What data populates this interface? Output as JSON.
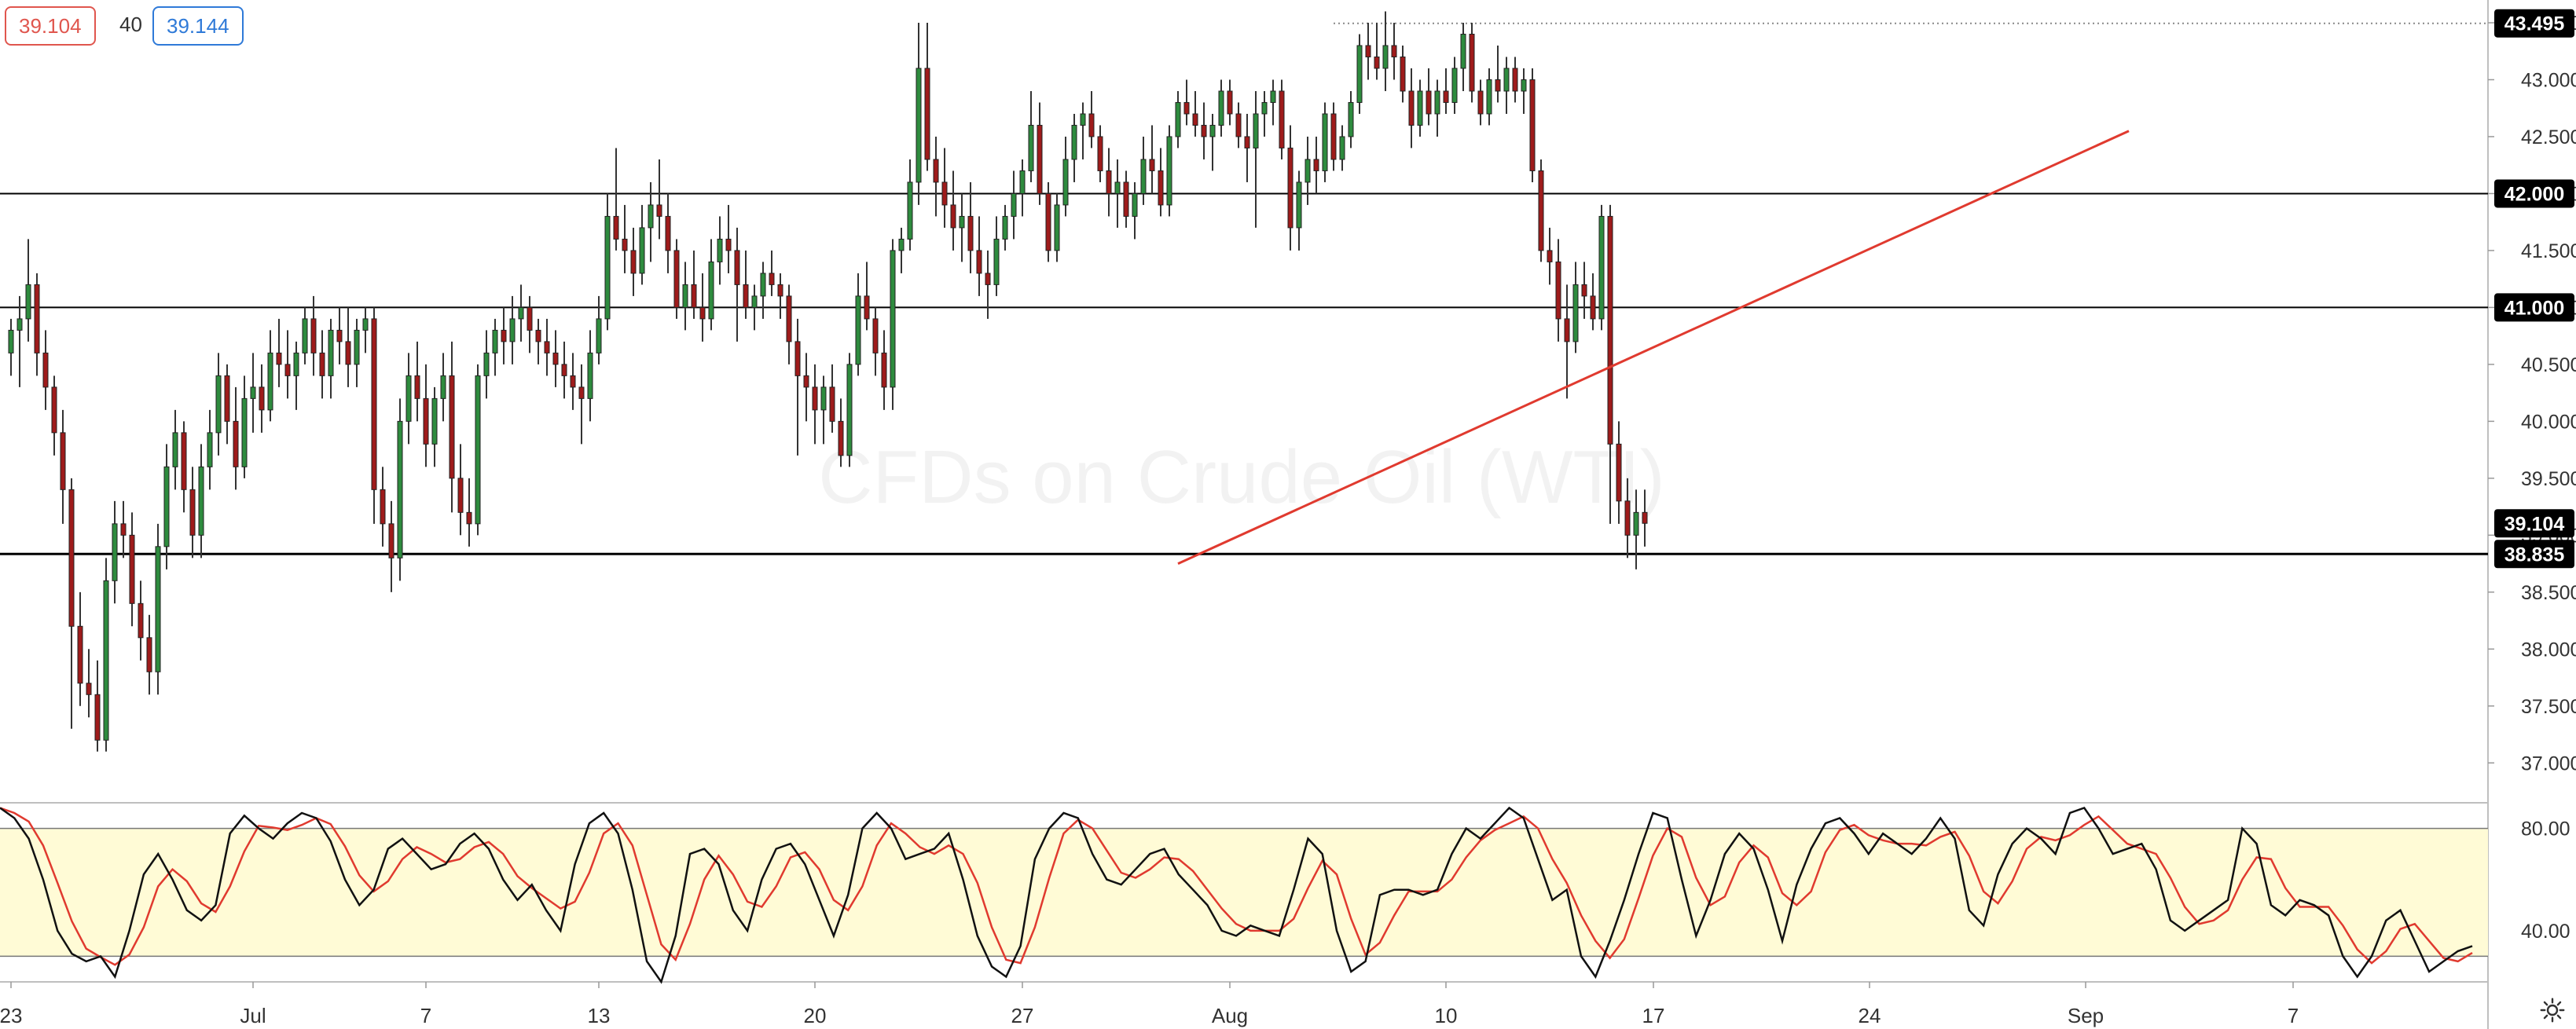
{
  "quote_bar": {
    "bid": "39.104",
    "spread": "40",
    "ask": "39.144"
  },
  "colors": {
    "up": "#2e8b3e",
    "down": "#9e1b1b",
    "trend": "#e03a2f",
    "band": "#fffbd6",
    "k_line": "#111111",
    "d_line": "#e03a2f"
  },
  "icons": {
    "settings": "gear-icon"
  },
  "chart_data": {
    "type": "candlestick",
    "instrument_watermark": "CFDs on Crude Oil (WTI)",
    "price_axis": {
      "ylim": [
        36.65,
        43.7
      ],
      "ticks": [
        "37.000",
        "37.500",
        "38.000",
        "38.500",
        "39.000",
        "39.500",
        "40.000",
        "40.500",
        "41.000",
        "41.500",
        "42.000",
        "42.500",
        "43.000",
        "43.500"
      ],
      "highlight_labels": [
        {
          "value": 43.495,
          "label": "43.495"
        },
        {
          "value": 42.0,
          "label": "42.000"
        },
        {
          "value": 41.0,
          "label": "41.000"
        },
        {
          "value": 39.104,
          "label": "39.104"
        },
        {
          "value": 38.835,
          "label": "38.835"
        }
      ]
    },
    "x_axis": {
      "ticks": [
        {
          "i": 0,
          "label": "23"
        },
        {
          "i": 28,
          "label": "Jul"
        },
        {
          "i": 48,
          "label": "7"
        },
        {
          "i": 68,
          "label": "13"
        },
        {
          "i": 93,
          "label": "20"
        },
        {
          "i": 117,
          "label": "27"
        },
        {
          "i": 141,
          "label": "Aug"
        },
        {
          "i": 166,
          "label": "10"
        },
        {
          "i": 190,
          "label": "17"
        },
        {
          "i": 215,
          "label": "24"
        },
        {
          "i": 240,
          "label": "Sep"
        },
        {
          "i": 264,
          "label": "7"
        }
      ]
    },
    "horizontal_levels": [
      42.0,
      41.0,
      38.835
    ],
    "dotted_level": {
      "value": 43.495,
      "from_i": 153
    },
    "trendline": {
      "from": {
        "i": 135,
        "price": 38.75
      },
      "to": {
        "i": 245,
        "price": 42.55
      }
    },
    "candles": [
      [
        40.6,
        40.9,
        40.4,
        40.8
      ],
      [
        40.8,
        41.1,
        40.3,
        40.9
      ],
      [
        40.9,
        41.6,
        40.7,
        41.2
      ],
      [
        41.2,
        41.3,
        40.4,
        40.6
      ],
      [
        40.6,
        40.8,
        40.1,
        40.3
      ],
      [
        40.3,
        40.4,
        39.7,
        39.9
      ],
      [
        39.9,
        40.1,
        39.1,
        39.4
      ],
      [
        39.4,
        39.5,
        37.3,
        38.2
      ],
      [
        38.2,
        38.5,
        37.5,
        37.7
      ],
      [
        37.7,
        38.0,
        37.4,
        37.6
      ],
      [
        37.6,
        37.9,
        37.1,
        37.2
      ],
      [
        37.2,
        38.8,
        37.1,
        38.6
      ],
      [
        38.6,
        39.3,
        38.4,
        39.1
      ],
      [
        39.1,
        39.3,
        38.8,
        39.0
      ],
      [
        39.0,
        39.2,
        38.2,
        38.4
      ],
      [
        38.4,
        38.6,
        37.9,
        38.1
      ],
      [
        38.1,
        38.3,
        37.6,
        37.8
      ],
      [
        37.8,
        39.1,
        37.6,
        38.9
      ],
      [
        38.9,
        39.8,
        38.7,
        39.6
      ],
      [
        39.6,
        40.1,
        39.4,
        39.9
      ],
      [
        39.9,
        40.0,
        39.2,
        39.4
      ],
      [
        39.4,
        39.6,
        38.8,
        39.0
      ],
      [
        39.0,
        39.8,
        38.8,
        39.6
      ],
      [
        39.6,
        40.1,
        39.4,
        39.9
      ],
      [
        39.9,
        40.6,
        39.7,
        40.4
      ],
      [
        40.4,
        40.5,
        39.8,
        40.0
      ],
      [
        40.0,
        40.3,
        39.4,
        39.6
      ],
      [
        39.6,
        40.4,
        39.5,
        40.2
      ],
      [
        40.2,
        40.6,
        39.9,
        40.3
      ],
      [
        40.3,
        40.5,
        39.9,
        40.1
      ],
      [
        40.1,
        40.8,
        40.0,
        40.6
      ],
      [
        40.6,
        40.9,
        40.3,
        40.5
      ],
      [
        40.5,
        40.8,
        40.2,
        40.4
      ],
      [
        40.4,
        40.7,
        40.1,
        40.6
      ],
      [
        40.6,
        41.0,
        40.5,
        40.9
      ],
      [
        40.9,
        41.1,
        40.4,
        40.6
      ],
      [
        40.6,
        40.8,
        40.2,
        40.4
      ],
      [
        40.4,
        40.9,
        40.2,
        40.8
      ],
      [
        40.8,
        41.0,
        40.5,
        40.7
      ],
      [
        40.7,
        41.0,
        40.3,
        40.5
      ],
      [
        40.5,
        40.9,
        40.3,
        40.8
      ],
      [
        40.8,
        41.0,
        40.6,
        40.9
      ],
      [
        40.9,
        41.0,
        39.1,
        39.4
      ],
      [
        39.4,
        39.6,
        38.9,
        39.1
      ],
      [
        39.1,
        39.3,
        38.5,
        38.8
      ],
      [
        38.8,
        40.2,
        38.6,
        40.0
      ],
      [
        40.0,
        40.6,
        39.8,
        40.4
      ],
      [
        40.4,
        40.7,
        40.0,
        40.2
      ],
      [
        40.2,
        40.5,
        39.6,
        39.8
      ],
      [
        39.8,
        40.3,
        39.6,
        40.2
      ],
      [
        40.2,
        40.6,
        40.0,
        40.4
      ],
      [
        40.4,
        40.7,
        39.2,
        39.5
      ],
      [
        39.5,
        39.8,
        39.0,
        39.2
      ],
      [
        39.2,
        39.5,
        38.9,
        39.1
      ],
      [
        39.1,
        40.5,
        39.0,
        40.4
      ],
      [
        40.4,
        40.8,
        40.2,
        40.6
      ],
      [
        40.6,
        40.9,
        40.4,
        40.8
      ],
      [
        40.8,
        41.0,
        40.5,
        40.7
      ],
      [
        40.7,
        41.1,
        40.5,
        40.9
      ],
      [
        40.9,
        41.2,
        40.7,
        41.0
      ],
      [
        41.0,
        41.1,
        40.6,
        40.8
      ],
      [
        40.8,
        40.9,
        40.5,
        40.7
      ],
      [
        40.7,
        40.9,
        40.4,
        40.6
      ],
      [
        40.6,
        40.8,
        40.3,
        40.5
      ],
      [
        40.5,
        40.7,
        40.2,
        40.4
      ],
      [
        40.4,
        40.6,
        40.1,
        40.3
      ],
      [
        40.3,
        40.5,
        39.8,
        40.2
      ],
      [
        40.2,
        40.8,
        40.0,
        40.6
      ],
      [
        40.6,
        41.1,
        40.5,
        40.9
      ],
      [
        40.9,
        42.0,
        40.8,
        41.8
      ],
      [
        41.8,
        42.4,
        41.5,
        41.6
      ],
      [
        41.6,
        41.9,
        41.3,
        41.5
      ],
      [
        41.5,
        41.7,
        41.1,
        41.3
      ],
      [
        41.3,
        41.9,
        41.2,
        41.7
      ],
      [
        41.7,
        42.1,
        41.4,
        41.9
      ],
      [
        41.9,
        42.3,
        41.6,
        41.8
      ],
      [
        41.8,
        42.0,
        41.3,
        41.5
      ],
      [
        41.5,
        41.6,
        40.9,
        41.0
      ],
      [
        41.0,
        41.4,
        40.8,
        41.2
      ],
      [
        41.2,
        41.5,
        40.9,
        41.0
      ],
      [
        41.0,
        41.3,
        40.7,
        40.9
      ],
      [
        40.9,
        41.6,
        40.8,
        41.4
      ],
      [
        41.4,
        41.8,
        41.2,
        41.6
      ],
      [
        41.6,
        41.9,
        41.3,
        41.5
      ],
      [
        41.5,
        41.7,
        40.7,
        41.2
      ],
      [
        41.2,
        41.5,
        40.9,
        41.0
      ],
      [
        41.0,
        41.2,
        40.8,
        41.1
      ],
      [
        41.1,
        41.4,
        40.9,
        41.3
      ],
      [
        41.3,
        41.5,
        41.1,
        41.2
      ],
      [
        41.2,
        41.3,
        40.9,
        41.1
      ],
      [
        41.1,
        41.2,
        40.5,
        40.7
      ],
      [
        40.7,
        40.9,
        39.7,
        40.4
      ],
      [
        40.4,
        40.6,
        40.0,
        40.3
      ],
      [
        40.3,
        40.5,
        39.8,
        40.1
      ],
      [
        40.1,
        40.4,
        39.8,
        40.3
      ],
      [
        40.3,
        40.5,
        39.9,
        40.0
      ],
      [
        40.0,
        40.2,
        39.6,
        39.7
      ],
      [
        39.7,
        40.6,
        39.6,
        40.5
      ],
      [
        40.5,
        41.3,
        40.4,
        41.1
      ],
      [
        41.1,
        41.4,
        40.8,
        40.9
      ],
      [
        40.9,
        41.0,
        40.4,
        40.6
      ],
      [
        40.6,
        40.8,
        40.1,
        40.3
      ],
      [
        40.3,
        41.6,
        40.1,
        41.5
      ],
      [
        41.5,
        41.7,
        41.3,
        41.6
      ],
      [
        41.6,
        42.3,
        41.5,
        42.1
      ],
      [
        42.1,
        43.5,
        41.9,
        43.1
      ],
      [
        43.1,
        43.5,
        42.2,
        42.3
      ],
      [
        42.3,
        42.5,
        41.8,
        42.1
      ],
      [
        42.1,
        42.4,
        41.7,
        41.9
      ],
      [
        41.9,
        42.2,
        41.5,
        41.7
      ],
      [
        41.7,
        42.0,
        41.4,
        41.8
      ],
      [
        41.8,
        42.1,
        41.3,
        41.5
      ],
      [
        41.5,
        41.8,
        41.1,
        41.3
      ],
      [
        41.3,
        41.5,
        40.9,
        41.2
      ],
      [
        41.2,
        41.8,
        41.1,
        41.6
      ],
      [
        41.6,
        41.9,
        41.5,
        41.8
      ],
      [
        41.8,
        42.2,
        41.6,
        42.0
      ],
      [
        42.0,
        42.3,
        41.8,
        42.2
      ],
      [
        42.2,
        42.9,
        42.1,
        42.6
      ],
      [
        42.6,
        42.8,
        41.9,
        42.0
      ],
      [
        42.0,
        42.1,
        41.4,
        41.5
      ],
      [
        41.5,
        42.0,
        41.4,
        41.9
      ],
      [
        41.9,
        42.5,
        41.8,
        42.3
      ],
      [
        42.3,
        42.7,
        42.1,
        42.6
      ],
      [
        42.6,
        42.8,
        42.3,
        42.7
      ],
      [
        42.7,
        42.9,
        42.4,
        42.5
      ],
      [
        42.5,
        42.6,
        42.1,
        42.2
      ],
      [
        42.2,
        42.4,
        41.8,
        42.0
      ],
      [
        42.0,
        42.3,
        41.7,
        42.1
      ],
      [
        42.1,
        42.2,
        41.7,
        41.8
      ],
      [
        41.8,
        42.1,
        41.6,
        42.0
      ],
      [
        42.0,
        42.5,
        41.9,
        42.3
      ],
      [
        42.3,
        42.6,
        42.0,
        42.2
      ],
      [
        42.2,
        42.4,
        41.8,
        41.9
      ],
      [
        41.9,
        42.6,
        41.8,
        42.5
      ],
      [
        42.5,
        42.9,
        42.4,
        42.8
      ],
      [
        42.8,
        43.0,
        42.6,
        42.7
      ],
      [
        42.7,
        42.9,
        42.5,
        42.6
      ],
      [
        42.6,
        42.8,
        42.3,
        42.5
      ],
      [
        42.5,
        42.7,
        42.2,
        42.6
      ],
      [
        42.6,
        43.0,
        42.5,
        42.9
      ],
      [
        42.9,
        43.0,
        42.6,
        42.7
      ],
      [
        42.7,
        42.8,
        42.4,
        42.5
      ],
      [
        42.5,
        42.7,
        42.1,
        42.4
      ],
      [
        42.4,
        42.9,
        41.7,
        42.7
      ],
      [
        42.7,
        42.9,
        42.5,
        42.8
      ],
      [
        42.8,
        43.0,
        42.6,
        42.9
      ],
      [
        42.9,
        43.0,
        42.3,
        42.4
      ],
      [
        42.4,
        42.6,
        41.5,
        41.7
      ],
      [
        41.7,
        42.2,
        41.5,
        42.1
      ],
      [
        42.1,
        42.5,
        41.9,
        42.3
      ],
      [
        42.3,
        42.5,
        42.0,
        42.2
      ],
      [
        42.2,
        42.8,
        42.1,
        42.7
      ],
      [
        42.7,
        42.8,
        42.2,
        42.3
      ],
      [
        42.3,
        42.6,
        42.2,
        42.5
      ],
      [
        42.5,
        42.9,
        42.4,
        42.8
      ],
      [
        42.8,
        43.4,
        42.7,
        43.3
      ],
      [
        43.3,
        43.5,
        43.0,
        43.2
      ],
      [
        43.2,
        43.5,
        43.0,
        43.1
      ],
      [
        43.1,
        43.6,
        42.9,
        43.3
      ],
      [
        43.3,
        43.5,
        43.0,
        43.2
      ],
      [
        43.2,
        43.3,
        42.8,
        42.9
      ],
      [
        42.9,
        43.1,
        42.4,
        42.6
      ],
      [
        42.6,
        43.0,
        42.5,
        42.9
      ],
      [
        42.9,
        43.1,
        42.6,
        42.7
      ],
      [
        42.7,
        43.0,
        42.5,
        42.9
      ],
      [
        42.9,
        43.1,
        42.7,
        42.8
      ],
      [
        42.8,
        43.2,
        42.7,
        43.1
      ],
      [
        43.1,
        43.5,
        42.9,
        43.4
      ],
      [
        43.4,
        43.5,
        42.8,
        42.9
      ],
      [
        42.9,
        43.0,
        42.6,
        42.7
      ],
      [
        42.7,
        43.1,
        42.6,
        43.0
      ],
      [
        43.0,
        43.3,
        42.8,
        42.9
      ],
      [
        42.9,
        43.2,
        42.7,
        43.1
      ],
      [
        43.1,
        43.2,
        42.8,
        42.9
      ],
      [
        42.9,
        43.1,
        42.7,
        43.0
      ],
      [
        43.0,
        43.1,
        42.1,
        42.2
      ],
      [
        42.2,
        42.3,
        41.4,
        41.5
      ],
      [
        41.5,
        41.7,
        41.2,
        41.4
      ],
      [
        41.4,
        41.6,
        40.7,
        40.9
      ],
      [
        40.9,
        41.2,
        40.2,
        40.7
      ],
      [
        40.7,
        41.4,
        40.6,
        41.2
      ],
      [
        41.2,
        41.4,
        40.9,
        41.1
      ],
      [
        41.1,
        41.3,
        40.8,
        40.9
      ],
      [
        40.9,
        41.9,
        40.8,
        41.8
      ],
      [
        41.8,
        41.9,
        39.1,
        39.8
      ],
      [
        39.8,
        40.0,
        39.1,
        39.3
      ],
      [
        39.3,
        39.5,
        38.8,
        39.0
      ],
      [
        39.0,
        39.4,
        38.7,
        39.2
      ],
      [
        39.2,
        39.4,
        38.9,
        39.104
      ]
    ],
    "stochastic_pane": {
      "ylim": [
        20,
        90
      ],
      "band": [
        30,
        80
      ],
      "ticks": [
        "40.00",
        "80.00"
      ],
      "k_values": [
        88,
        84,
        76,
        60,
        40,
        31,
        28,
        30,
        22,
        40,
        62,
        70,
        60,
        48,
        44,
        50,
        78,
        85,
        80,
        76,
        82,
        86,
        84,
        75,
        60,
        50,
        56,
        72,
        76,
        70,
        64,
        66,
        74,
        78,
        72,
        60,
        52,
        58,
        48,
        40,
        66,
        82,
        86,
        78,
        56,
        28,
        20,
        38,
        70,
        72,
        66,
        48,
        40,
        60,
        72,
        74,
        66,
        52,
        38,
        54,
        80,
        86,
        80,
        68,
        70,
        72,
        78,
        60,
        38,
        26,
        22,
        34,
        68,
        80,
        86,
        84,
        70,
        60,
        58,
        64,
        70,
        72,
        62,
        56,
        50,
        40,
        38,
        42,
        40,
        38,
        56,
        76,
        70,
        40,
        24,
        28,
        54,
        56,
        56,
        54,
        56,
        70,
        80,
        76,
        82,
        88,
        84,
        68,
        52,
        56,
        30,
        22,
        36,
        52,
        70,
        86,
        84,
        60,
        38,
        52,
        70,
        78,
        72,
        56,
        36,
        58,
        72,
        82,
        84,
        78,
        70,
        78,
        74,
        70,
        76,
        84,
        76,
        48,
        42,
        62,
        74,
        80,
        76,
        70,
        86,
        88,
        80,
        70,
        72,
        74,
        64,
        44,
        40,
        44,
        48,
        52,
        80,
        74,
        50,
        46,
        52,
        50,
        46,
        30,
        22,
        30,
        44,
        48,
        36,
        24,
        28,
        32,
        34
      ]
    }
  }
}
